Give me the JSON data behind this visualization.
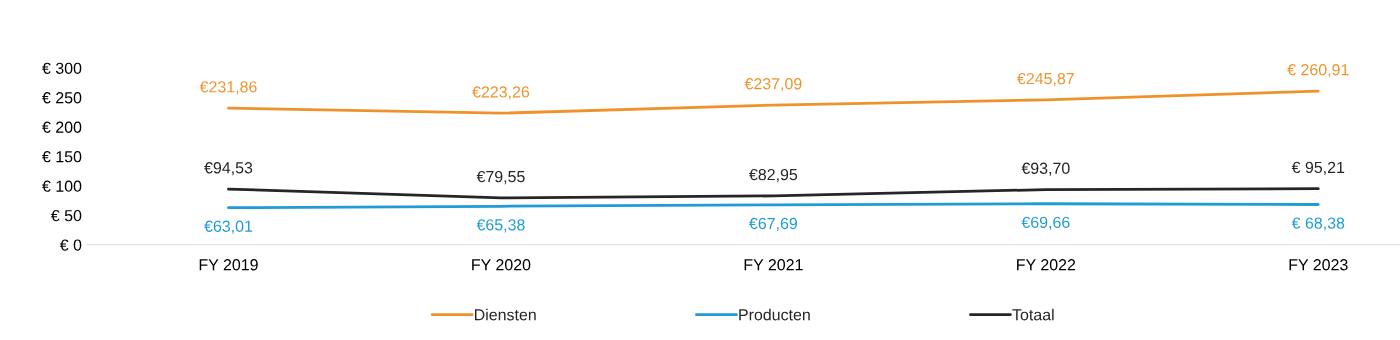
{
  "chart_data": {
    "type": "line",
    "categories": [
      "FY 2019",
      "FY 2020",
      "FY 2021",
      "FY 2022",
      "FY 2023"
    ],
    "series": [
      {
        "name": "Diensten",
        "color": "#f0922b",
        "values": [
          231.86,
          223.26,
          237.09,
          245.87,
          260.91
        ],
        "value_labels": [
          "€231,86",
          "€223,26",
          "€237,09",
          "€245,87",
          "€ 260,91"
        ]
      },
      {
        "name": "Producten",
        "color": "#1f9bd7",
        "values": [
          63.01,
          65.38,
          67.69,
          69.66,
          68.38
        ],
        "value_labels": [
          "€63,01",
          "€65,38",
          "€67,69",
          "€69,66",
          "€ 68,38"
        ]
      },
      {
        "name": "Totaal",
        "color": "#262626",
        "values": [
          94.53,
          79.55,
          82.95,
          93.7,
          95.21
        ],
        "value_labels": [
          "€94,53",
          "€79,55",
          "€82,95",
          "€93,70",
          "€ 95,21"
        ]
      }
    ],
    "ylim": [
      0,
      300
    ],
    "yticks": [
      {
        "value": 0,
        "label": "€ 0"
      },
      {
        "value": 50,
        "label": "€ 50"
      },
      {
        "value": 100,
        "label": "€ 100"
      },
      {
        "value": 150,
        "label": "€ 150"
      },
      {
        "value": 200,
        "label": "€ 200"
      },
      {
        "value": 250,
        "label": "€ 250"
      },
      {
        "value": 300,
        "label": "€ 300"
      }
    ],
    "grid": false,
    "legend": "bottom",
    "marker": "none",
    "line_style": "solid"
  }
}
